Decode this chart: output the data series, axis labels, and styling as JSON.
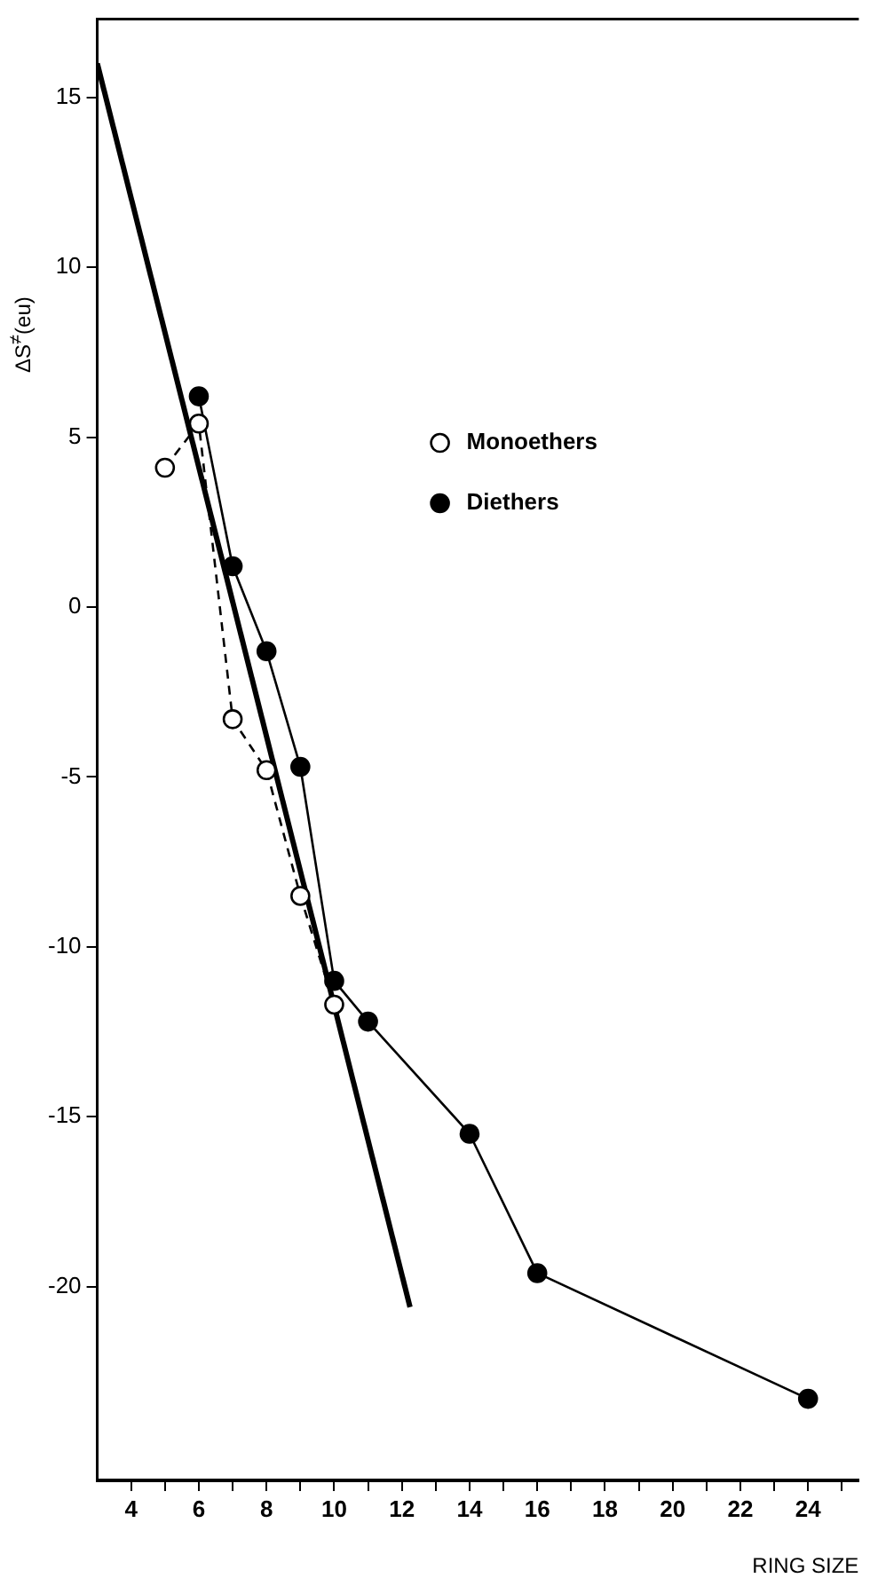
{
  "chart_data": {
    "type": "line",
    "xlabel": "RING SIZE",
    "ylabel": "ΔS$^{≠}$(eu)",
    "xlim": [
      3,
      25.5
    ],
    "ylim": [
      -25.7,
      17.3
    ],
    "xticks": [
      4,
      {
        "value": 5,
        "label": null
      },
      6,
      {
        "value": 7,
        "label": null
      },
      8,
      {
        "value": 9,
        "label": null
      },
      10,
      {
        "value": 11,
        "label": null
      },
      12,
      {
        "value": 13,
        "label": null
      },
      14,
      {
        "value": 15,
        "label": null
      },
      16,
      {
        "value": 17,
        "label": null
      },
      18,
      {
        "value": 19,
        "label": null
      },
      20,
      {
        "value": 21,
        "label": null
      },
      22,
      {
        "value": 23,
        "label": null
      },
      24,
      {
        "value": 25,
        "label": null
      }
    ],
    "yticks": [
      15,
      10,
      5,
      0,
      -5,
      -10,
      -15,
      -20
    ],
    "grid": false,
    "legend": "right",
    "marker": "circle",
    "series": [
      {
        "name": "Monoethers",
        "color": "#000000",
        "x": [
          5,
          6,
          7,
          8,
          9,
          10
        ],
        "values": [
          4.1,
          5.4,
          -3.3,
          -4.8,
          -8.5,
          -11.7
        ],
        "line_style": "dashed"
      },
      {
        "name": "Diethers",
        "color": "#000000",
        "x": [
          6,
          7,
          8,
          9,
          10,
          11,
          14,
          16,
          24
        ],
        "values": [
          6.2,
          1.2,
          -1.3,
          -4.7,
          -11,
          -12.2,
          -15.5,
          -19.6,
          -23.3
        ],
        "line_style": "solid"
      },
      {
        "color": "#000000",
        "x": [
          3,
          12.24
        ],
        "values": [
          16,
          -20.6
        ],
        "marker": "none",
        "line_style": "solid"
      }
    ]
  }
}
